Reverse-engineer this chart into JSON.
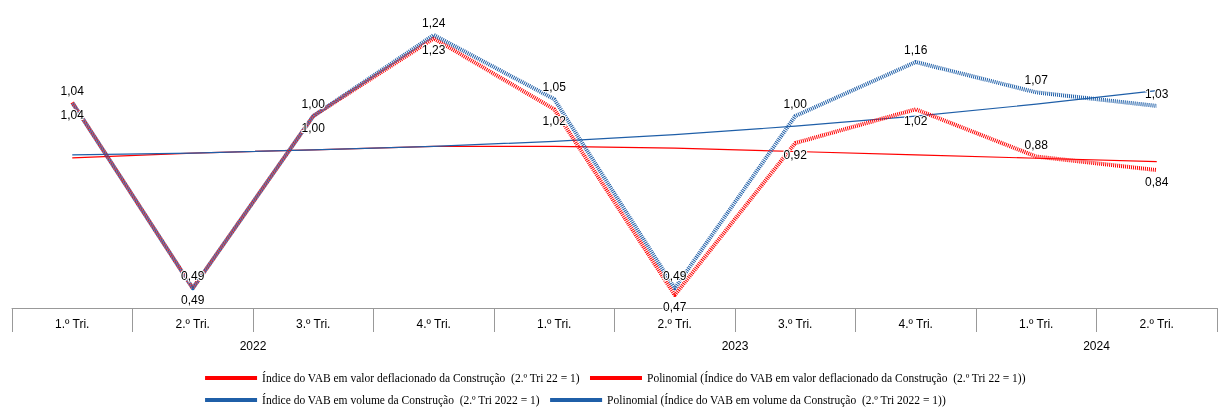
{
  "chart_data": {
    "type": "line",
    "categories": [
      "1.º Tri.",
      "2.º Tri.",
      "3.º Tri.",
      "4.º Tri.",
      "1.º Tri.",
      "2.º Tri.",
      "3.º Tri.",
      "4.º Tri.",
      "1.º Tri.",
      "2.º Tri."
    ],
    "series": [
      {
        "name": "Índice do VAB em valor deflacionado da Construção  (2.º Tri 22 = 1)",
        "color": "#ff0000",
        "line_style": "dotted",
        "values": [
          1.04,
          0.49,
          1.0,
          1.23,
          1.02,
          0.47,
          0.92,
          1.02,
          0.88,
          0.84
        ],
        "value_labels": [
          "1,04",
          "0,49",
          "1,00",
          "1,23",
          "1,02",
          "0,47",
          "0,92",
          "1,02",
          "0,88",
          "0,84"
        ]
      },
      {
        "name": "Polinomial (Índice do VAB em valor deflacionado da Construção  (2.º Tri 22 = 1))",
        "color": "#ff0000",
        "line_style": "solid",
        "values": [
          0.876,
          0.89,
          0.9,
          0.91,
          0.91,
          0.905,
          0.895,
          0.885,
          0.875,
          0.865
        ]
      },
      {
        "name": "Índice do VAB em volume da Construção  (2.º Tri 2022 = 1)",
        "color": "#1f5fa8",
        "line_style": "dotted",
        "values": [
          1.04,
          0.49,
          1.0,
          1.24,
          1.05,
          0.49,
          1.0,
          1.16,
          1.07,
          1.03
        ],
        "value_labels": [
          "1,04",
          "0,49",
          "1,00",
          "1,24",
          "1,05",
          "0,49",
          "1,00",
          "1,16",
          "1,07",
          "1,03"
        ]
      },
      {
        "name": "Polinomial (Índice do VAB em volume da Construção  (2.º Tri 2022 = 1))",
        "color": "#1f5fa8",
        "line_style": "solid",
        "values": [
          0.885,
          0.89,
          0.9,
          0.91,
          0.925,
          0.945,
          0.97,
          1.0,
          1.035,
          1.075
        ]
      }
    ],
    "annotations": [
      "2022",
      "2023",
      "2024"
    ],
    "tick_labels": "x",
    "grid": false,
    "legend": "bottom",
    "marker": "none"
  }
}
